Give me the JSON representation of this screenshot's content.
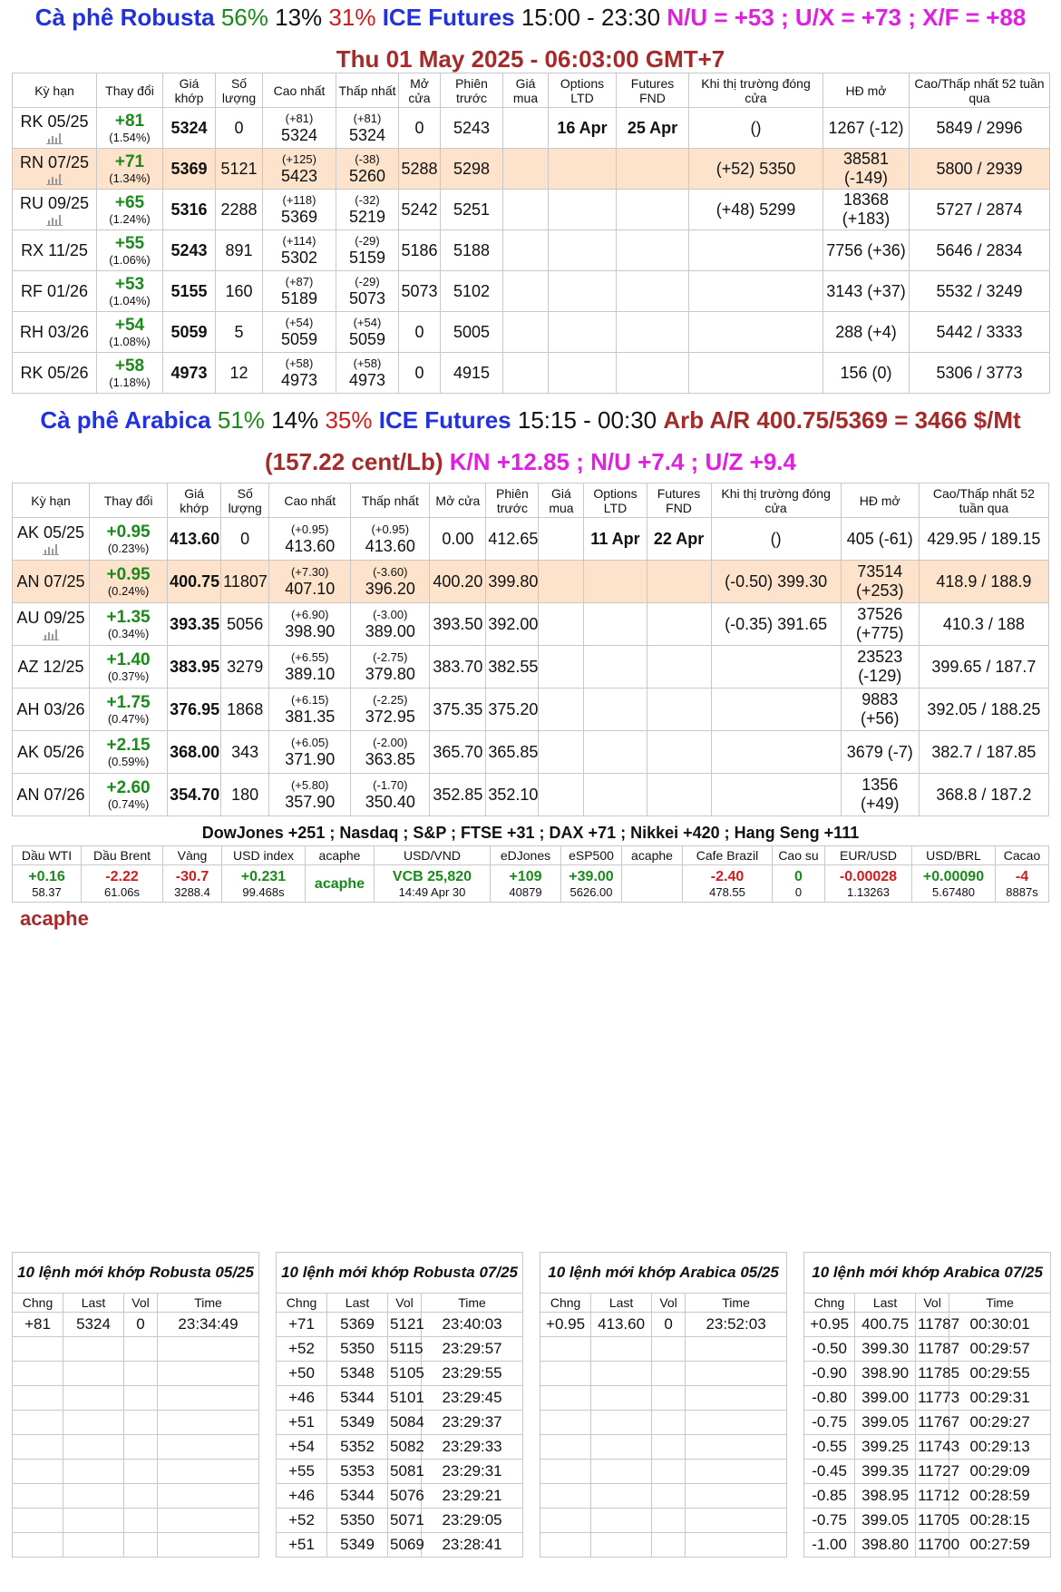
{
  "robusta": {
    "title": {
      "name": "Cà phê Robusta",
      "pct1": "56%",
      "pct2": "13%",
      "pct3": "31%",
      "exchange": "ICE Futures",
      "hours": "15:00 - 23:30",
      "spreads": "N/U = +53 ; U/X = +73 ; X/F = +88",
      "timestamp": "Thu 01 May 2025 - 06:03:00 GMT+7"
    },
    "table": {
      "columns": [
        "Kỳ hạn",
        "Thay đổi",
        "Giá khớp",
        "Số lượng",
        "Cao nhất",
        "Thấp nhất",
        "Mở cửa",
        "Phiên trước",
        "Giá mua",
        "Options LTD",
        "Futures FND",
        "Khi thị trường đóng cửa",
        "HĐ mở",
        "Cao/Thấp nhất 52 tuần qua"
      ],
      "rows": [
        [
          "RK 05/25",
          [
            "+81",
            "(1.54%)"
          ],
          "5324",
          "0",
          [
            "(+81)",
            "5324"
          ],
          [
            "(+81)",
            "5324"
          ],
          "0",
          "5243",
          null,
          "16 Apr",
          "25 Apr",
          "()",
          "1267 (-12)",
          "5849 / 2996"
        ],
        [
          "RN 07/25",
          [
            "+71",
            "(1.34%)"
          ],
          "5369",
          "5121",
          [
            "(+125)",
            "5423"
          ],
          [
            "(-38)",
            "5260"
          ],
          "5288",
          "5298",
          null,
          null,
          null,
          "(+52) 5350",
          [
            "38581",
            "(-149)"
          ],
          "5800 / 2939"
        ],
        [
          "RU 09/25",
          [
            "+65",
            "(1.24%)"
          ],
          "5316",
          "2288",
          [
            "(+118)",
            "5369"
          ],
          [
            "(-32)",
            "5219"
          ],
          "5242",
          "5251",
          null,
          null,
          null,
          "(+48) 5299",
          [
            "18368",
            "(+183)"
          ],
          "5727 / 2874"
        ],
        [
          "RX 11/25",
          [
            "+55",
            "(1.06%)"
          ],
          "5243",
          "891",
          [
            "(+114)",
            "5302"
          ],
          [
            "(-29)",
            "5159"
          ],
          "5186",
          "5188",
          null,
          null,
          null,
          null,
          "7756 (+36)",
          "5646 / 2834"
        ],
        [
          "RF 01/26",
          [
            "+53",
            "(1.04%)"
          ],
          "5155",
          "160",
          [
            "(+87)",
            "5189"
          ],
          [
            "(-29)",
            "5073"
          ],
          "5073",
          "5102",
          null,
          null,
          null,
          null,
          "3143 (+37)",
          "5532 / 3249"
        ],
        [
          "RH 03/26",
          [
            "+54",
            "(1.08%)"
          ],
          "5059",
          "5",
          [
            "(+54)",
            "5059"
          ],
          [
            "(+54)",
            "5059"
          ],
          "0",
          "5005",
          null,
          null,
          null,
          null,
          "288 (+4)",
          "5442 / 3333"
        ],
        [
          "RK 05/26",
          [
            "+58",
            "(1.18%)"
          ],
          "4973",
          "12",
          [
            "(+58)",
            "4973"
          ],
          [
            "(+58)",
            "4973"
          ],
          "0",
          "4915",
          null,
          null,
          null,
          null,
          "156 (0)",
          "5306 / 3773"
        ]
      ]
    }
  },
  "arabica": {
    "title": {
      "name": "Cà phê Arabica",
      "pct1": "51%",
      "pct2": "14%",
      "pct3": "35%",
      "exchange": "ICE Futures",
      "hours": "15:15 - 00:30",
      "arb": "Arb A/R 400.75/5369 = 3466 $/Mt (157.22 cent/Lb)",
      "spreads": "K/N +12.85 ; N/U +7.4 ; U/Z +9.4"
    },
    "table": {
      "columns": [
        "Kỳ hạn",
        "Thay đổi",
        "Giá khớp",
        "Số lượng",
        "Cao nhất",
        "Thấp nhất",
        "Mở cửa",
        "Phiên trước",
        "Giá mua",
        "Options LTD",
        "Futures FND",
        "Khi thị trường đóng cửa",
        "HĐ mở",
        "Cao/Thấp nhất 52 tuần qua"
      ],
      "rows": [
        [
          "AK 05/25",
          [
            "+0.95",
            "(0.23%)"
          ],
          "413.60",
          "0",
          [
            "(+0.95)",
            "413.60"
          ],
          [
            "(+0.95)",
            "413.60"
          ],
          "0.00",
          "412.65",
          null,
          "11 Apr",
          "22 Apr",
          "()",
          "405 (-61)",
          "429.95 / 189.15"
        ],
        [
          "AN 07/25",
          [
            "+0.95",
            "(0.24%)"
          ],
          "400.75",
          "11807",
          [
            "(+7.30)",
            "407.10"
          ],
          [
            "(-3.60)",
            "396.20"
          ],
          "400.20",
          "399.80",
          null,
          null,
          null,
          "(-0.50) 399.30",
          [
            "73514",
            "(+253)"
          ],
          "418.9 / 188.9"
        ],
        [
          "AU 09/25",
          [
            "+1.35",
            "(0.34%)"
          ],
          "393.35",
          "5056",
          [
            "(+6.90)",
            "398.90"
          ],
          [
            "(-3.00)",
            "389.00"
          ],
          "393.50",
          "392.00",
          null,
          null,
          null,
          "(-0.35) 391.65",
          [
            "37526",
            "(+775)"
          ],
          "410.3 / 188"
        ],
        [
          "AZ 12/25",
          [
            "+1.40",
            "(0.37%)"
          ],
          "383.95",
          "3279",
          [
            "(+6.55)",
            "389.10"
          ],
          [
            "(-2.75)",
            "379.80"
          ],
          "383.70",
          "382.55",
          null,
          null,
          null,
          null,
          [
            "23523",
            "(-129)"
          ],
          "399.65 / 187.7"
        ],
        [
          "AH 03/26",
          [
            "+1.75",
            "(0.47%)"
          ],
          "376.95",
          "1868",
          [
            "(+6.15)",
            "381.35"
          ],
          [
            "(-2.25)",
            "372.95"
          ],
          "375.35",
          "375.20",
          null,
          null,
          null,
          null,
          [
            "9883",
            "(+56)"
          ],
          "392.05 / 188.25"
        ],
        [
          "AK 05/26",
          [
            "+2.15",
            "(0.59%)"
          ],
          "368.00",
          "343",
          [
            "(+6.05)",
            "371.90"
          ],
          [
            "(-2.00)",
            "363.85"
          ],
          "365.70",
          "365.85",
          null,
          null,
          null,
          null,
          "3679 (-7)",
          "382.7 / 187.85"
        ],
        [
          "AN 07/26",
          [
            "+2.60",
            "(0.74%)"
          ],
          "354.70",
          "180",
          [
            "(+5.80)",
            "357.90"
          ],
          [
            "(-1.70)",
            "350.40"
          ],
          "352.85",
          "352.10",
          null,
          null,
          null,
          null,
          [
            "1356",
            "(+49)"
          ],
          "368.8 / 187.2"
        ]
      ]
    }
  },
  "indices": "DowJones +251 ; Nasdaq ; S&P ; FTSE +31 ; DAX +71 ; Nikkei +420 ; Hang Seng +111",
  "markets": {
    "columns": [
      "Dầu WTI",
      "Dầu Brent",
      "Vàng",
      "USD index",
      "acaphe",
      "USD/VND",
      "eDJones",
      "eSP500",
      "acaphe",
      "Cafe Brazil",
      "Cao su",
      "EUR/USD",
      "USD/BRL",
      "Cacao"
    ],
    "values": [
      [
        "+0.16",
        "58.37"
      ],
      [
        "-2.22",
        "61.06s"
      ],
      [
        "-30.7",
        "3288.4"
      ],
      [
        "+0.231",
        "99.468s"
      ],
      [
        "acaphe"
      ],
      [
        "VCB 25,820",
        "14:49 Apr 30"
      ],
      [
        "+109",
        "40879"
      ],
      [
        "+39.00",
        "5626.00"
      ],
      null,
      [
        "-2.40",
        "478.55"
      ],
      [
        "0",
        "0"
      ],
      [
        "-0.00028",
        "1.13263"
      ],
      [
        "+0.00090",
        "5.67480"
      ],
      [
        "-4",
        "8887s"
      ]
    ]
  },
  "brand": "acaphe",
  "trades": [
    {
      "title": "10 lệnh mới khớp Robusta 05/25",
      "columns": [
        "Chng",
        "Last",
        "Vol",
        "Time"
      ],
      "rows": [
        [
          "+81",
          "5324",
          "0",
          "23:34:49"
        ]
      ]
    },
    {
      "title": "10 lệnh mới khớp Robusta 07/25",
      "columns": [
        "Chng",
        "Last",
        "Vol",
        "Time"
      ],
      "rows": [
        [
          "+71",
          "5369",
          "5121",
          "23:40:03"
        ],
        [
          "+52",
          "5350",
          "5115",
          "23:29:57"
        ],
        [
          "+50",
          "5348",
          "5105",
          "23:29:55"
        ],
        [
          "+46",
          "5344",
          "5101",
          "23:29:45"
        ],
        [
          "+51",
          "5349",
          "5084",
          "23:29:37"
        ],
        [
          "+54",
          "5352",
          "5082",
          "23:29:33"
        ],
        [
          "+55",
          "5353",
          "5081",
          "23:29:31"
        ],
        [
          "+46",
          "5344",
          "5076",
          "23:29:21"
        ],
        [
          "+52",
          "5350",
          "5071",
          "23:29:05"
        ],
        [
          "+51",
          "5349",
          "5069",
          "23:28:41"
        ]
      ]
    },
    {
      "title": "10 lệnh mới khớp Arabica 05/25",
      "columns": [
        "Chng",
        "Last",
        "Vol",
        "Time"
      ],
      "rows": [
        [
          "+0.95",
          "413.60",
          "0",
          "23:52:03"
        ]
      ]
    },
    {
      "title": "10 lệnh mới khớp Arabica 07/25",
      "columns": [
        "Chng",
        "Last",
        "Vol",
        "Time"
      ],
      "rows": [
        [
          "+0.95",
          "400.75",
          "11787",
          "00:30:01"
        ],
        [
          "-0.50",
          "399.30",
          "11787",
          "00:29:57"
        ],
        [
          "-0.90",
          "398.90",
          "11785",
          "00:29:55"
        ],
        [
          "-0.80",
          "399.00",
          "11773",
          "00:29:31"
        ],
        [
          "-0.75",
          "399.05",
          "11767",
          "00:29:27"
        ],
        [
          "-0.55",
          "399.25",
          "11743",
          "00:29:13"
        ],
        [
          "-0.45",
          "399.35",
          "11727",
          "00:29:09"
        ],
        [
          "-0.85",
          "398.95",
          "11712",
          "00:28:59"
        ],
        [
          "-0.75",
          "399.05",
          "11705",
          "00:28:15"
        ],
        [
          "-1.00",
          "398.80",
          "11700",
          "00:27:59"
        ]
      ]
    }
  ]
}
